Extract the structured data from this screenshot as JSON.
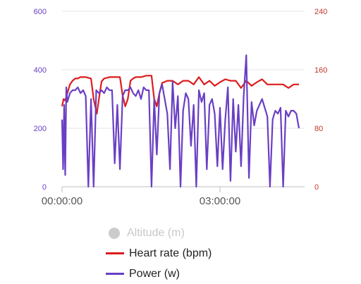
{
  "chart_data": {
    "type": "line",
    "x_ticks": [
      "00:00:00",
      "03:00:00"
    ],
    "x_tick_hours": [
      0,
      3
    ],
    "x_range_hours": [
      0,
      4.5
    ],
    "y_left": {
      "ylim": [
        0,
        600
      ],
      "ticks": [
        "0",
        "200",
        "400",
        "600"
      ],
      "color": "#6a3fc4"
    },
    "y_right": {
      "ylim": [
        0,
        240
      ],
      "ticks": [
        "0",
        "80",
        "160",
        "240"
      ],
      "color": "#c0392b"
    },
    "grid": true,
    "legend_placement": "bottom",
    "series": [
      {
        "name": "Altitude (m)",
        "color": "#cccccc",
        "visible": false,
        "axis": "left",
        "x": [],
        "values": []
      },
      {
        "name": "Heart rate (bpm)",
        "color": "#dd1c1c",
        "axis": "right",
        "visible": true,
        "x": [
          0.0,
          0.03,
          0.06,
          0.1,
          0.15,
          0.2,
          0.25,
          0.3,
          0.35,
          0.45,
          0.55,
          0.6,
          0.66,
          0.7,
          0.75,
          0.8,
          0.9,
          1.0,
          1.1,
          1.15,
          1.2,
          1.25,
          1.3,
          1.35,
          1.4,
          1.5,
          1.6,
          1.7,
          1.75,
          1.8,
          1.85,
          1.9,
          2.0,
          2.1,
          2.2,
          2.3,
          2.4,
          2.5,
          2.6,
          2.7,
          2.8,
          2.9,
          3.0,
          3.1,
          3.2,
          3.3,
          3.4,
          3.5,
          3.6,
          3.7,
          3.8,
          3.9,
          4.0,
          4.1,
          4.2,
          4.3,
          4.4,
          4.5
        ],
        "values": [
          110,
          120,
          118,
          128,
          140,
          145,
          148,
          148,
          150,
          150,
          148,
          120,
          100,
          120,
          144,
          148,
          150,
          150,
          150,
          125,
          110,
          120,
          145,
          148,
          150,
          150,
          152,
          152,
          120,
          110,
          128,
          142,
          145,
          145,
          140,
          145,
          145,
          140,
          150,
          140,
          145,
          138,
          143,
          147,
          145,
          145,
          135,
          145,
          138,
          143,
          147,
          140,
          140,
          140,
          140,
          135,
          140,
          140
        ]
      },
      {
        "name": "Power (w)",
        "color": "#6a3fc4",
        "axis": "left",
        "visible": true,
        "x": [
          0.0,
          0.02,
          0.04,
          0.06,
          0.08,
          0.1,
          0.15,
          0.2,
          0.25,
          0.3,
          0.35,
          0.4,
          0.45,
          0.5,
          0.55,
          0.6,
          0.65,
          0.7,
          0.75,
          0.8,
          0.85,
          0.9,
          0.95,
          1.0,
          1.05,
          1.1,
          1.15,
          1.2,
          1.25,
          1.3,
          1.35,
          1.4,
          1.45,
          1.5,
          1.55,
          1.6,
          1.65,
          1.7,
          1.75,
          1.8,
          1.85,
          1.9,
          2.0,
          2.05,
          2.1,
          2.15,
          2.2,
          2.25,
          2.3,
          2.35,
          2.4,
          2.45,
          2.5,
          2.55,
          2.6,
          2.65,
          2.7,
          2.75,
          2.8,
          2.85,
          2.9,
          2.95,
          3.0,
          3.05,
          3.1,
          3.15,
          3.2,
          3.25,
          3.3,
          3.35,
          3.4,
          3.45,
          3.5,
          3.55,
          3.6,
          3.65,
          3.7,
          3.75,
          3.8,
          3.85,
          3.9,
          3.95,
          4.0,
          4.05,
          4.1,
          4.15,
          4.2,
          4.25,
          4.3,
          4.35,
          4.4,
          4.45,
          4.5
        ],
        "values": [
          230,
          60,
          280,
          40,
          340,
          290,
          320,
          330,
          330,
          340,
          320,
          330,
          310,
          0,
          300,
          0,
          330,
          320,
          330,
          320,
          340,
          330,
          330,
          80,
          280,
          60,
          310,
          330,
          330,
          340,
          320,
          310,
          330,
          300,
          340,
          330,
          330,
          0,
          300,
          110,
          320,
          350,
          250,
          60,
          360,
          200,
          310,
          0,
          260,
          320,
          300,
          140,
          280,
          0,
          330,
          290,
          320,
          60,
          280,
          300,
          250,
          70,
          270,
          60,
          230,
          340,
          20,
          300,
          120,
          280,
          70,
          310,
          450,
          30,
          290,
          210,
          260,
          280,
          300,
          270,
          240,
          0,
          230,
          260,
          250,
          270,
          0,
          260,
          240,
          260,
          260,
          250,
          200
        ]
      }
    ]
  },
  "legend": [
    {
      "label": "Altitude (m)",
      "color": "#cccccc",
      "enabled": false
    },
    {
      "label": "Heart rate (bpm)",
      "color": "#dd1c1c",
      "enabled": true
    },
    {
      "label": "Power (w)",
      "color": "#6a3fc4",
      "enabled": true
    }
  ]
}
